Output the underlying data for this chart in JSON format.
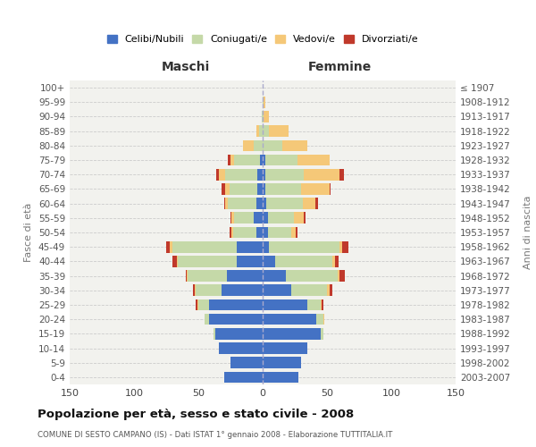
{
  "age_groups": [
    "0-4",
    "5-9",
    "10-14",
    "15-19",
    "20-24",
    "25-29",
    "30-34",
    "35-39",
    "40-44",
    "45-49",
    "50-54",
    "55-59",
    "60-64",
    "65-69",
    "70-74",
    "75-79",
    "80-84",
    "85-89",
    "90-94",
    "95-99",
    "100+"
  ],
  "birth_years": [
    "2003-2007",
    "1998-2002",
    "1993-1997",
    "1988-1992",
    "1983-1987",
    "1978-1982",
    "1973-1977",
    "1968-1972",
    "1963-1967",
    "1958-1962",
    "1953-1957",
    "1948-1952",
    "1943-1947",
    "1938-1942",
    "1933-1937",
    "1928-1932",
    "1923-1927",
    "1918-1922",
    "1913-1917",
    "1908-1912",
    "≤ 1907"
  ],
  "maschi": {
    "celibi": [
      30,
      25,
      34,
      37,
      42,
      42,
      32,
      28,
      20,
      20,
      5,
      7,
      5,
      4,
      4,
      2,
      0,
      0,
      0,
      0,
      0
    ],
    "coniugati": [
      0,
      0,
      0,
      1,
      3,
      8,
      20,
      30,
      46,
      50,
      18,
      15,
      22,
      22,
      25,
      20,
      7,
      3,
      1,
      0,
      0
    ],
    "vedovi": [
      0,
      0,
      0,
      0,
      0,
      1,
      1,
      1,
      1,
      2,
      1,
      2,
      2,
      3,
      5,
      3,
      8,
      2,
      0,
      0,
      0
    ],
    "divorziati": [
      0,
      0,
      0,
      0,
      0,
      1,
      1,
      1,
      3,
      3,
      2,
      1,
      1,
      3,
      2,
      2,
      0,
      0,
      0,
      0,
      0
    ]
  },
  "femmine": {
    "nubili": [
      28,
      30,
      35,
      45,
      42,
      35,
      22,
      18,
      10,
      5,
      4,
      4,
      3,
      2,
      2,
      2,
      0,
      0,
      0,
      0,
      0
    ],
    "coniugate": [
      0,
      0,
      0,
      2,
      5,
      10,
      28,
      40,
      44,
      55,
      18,
      20,
      28,
      28,
      30,
      25,
      15,
      5,
      1,
      1,
      0
    ],
    "vedove": [
      0,
      0,
      0,
      0,
      1,
      1,
      2,
      2,
      2,
      2,
      4,
      8,
      10,
      22,
      28,
      25,
      20,
      15,
      4,
      1,
      0
    ],
    "divorziate": [
      0,
      0,
      0,
      0,
      0,
      1,
      2,
      4,
      3,
      5,
      1,
      1,
      2,
      1,
      3,
      0,
      0,
      0,
      0,
      0,
      0
    ]
  },
  "colors": {
    "celibi_nubili": "#4472C4",
    "coniugati": "#c5d9a8",
    "vedovi": "#f5c878",
    "divorziati": "#c0392b"
  },
  "xlim": 150,
  "title": "Popolazione per età, sesso e stato civile - 2008",
  "subtitle": "COMUNE DI SESTO CAMPANO (IS) - Dati ISTAT 1° gennaio 2008 - Elaborazione TUTTITALIA.IT",
  "ylabel_left": "Fasce di età",
  "ylabel_right": "Anni di nascita",
  "maschi_label": "Maschi",
  "femmine_label": "Femmine",
  "legend": [
    "Celibi/Nubili",
    "Coniugati/e",
    "Vedovi/e",
    "Divorziati/e"
  ],
  "bg_color": "#f2f2ee"
}
